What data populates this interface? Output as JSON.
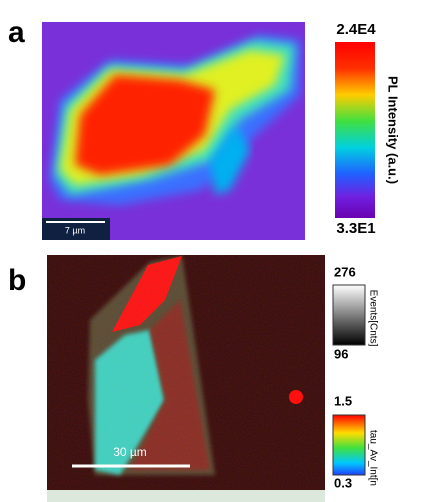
{
  "panels": [
    {
      "label": "a",
      "scale_bar": "7 µm",
      "colorbar": {
        "max": "2.4E4",
        "min": "3.3E1",
        "title": "PL Intensity (a.u.)"
      }
    },
    {
      "label": "b",
      "scale_bar": "30 µm",
      "colorbars": [
        {
          "max": "276",
          "min": "96",
          "title": "Events[Cnts]"
        },
        {
          "max": "1.5",
          "min": "0.3",
          "title": "tau_Av_Int[n"
        }
      ]
    }
  ]
}
